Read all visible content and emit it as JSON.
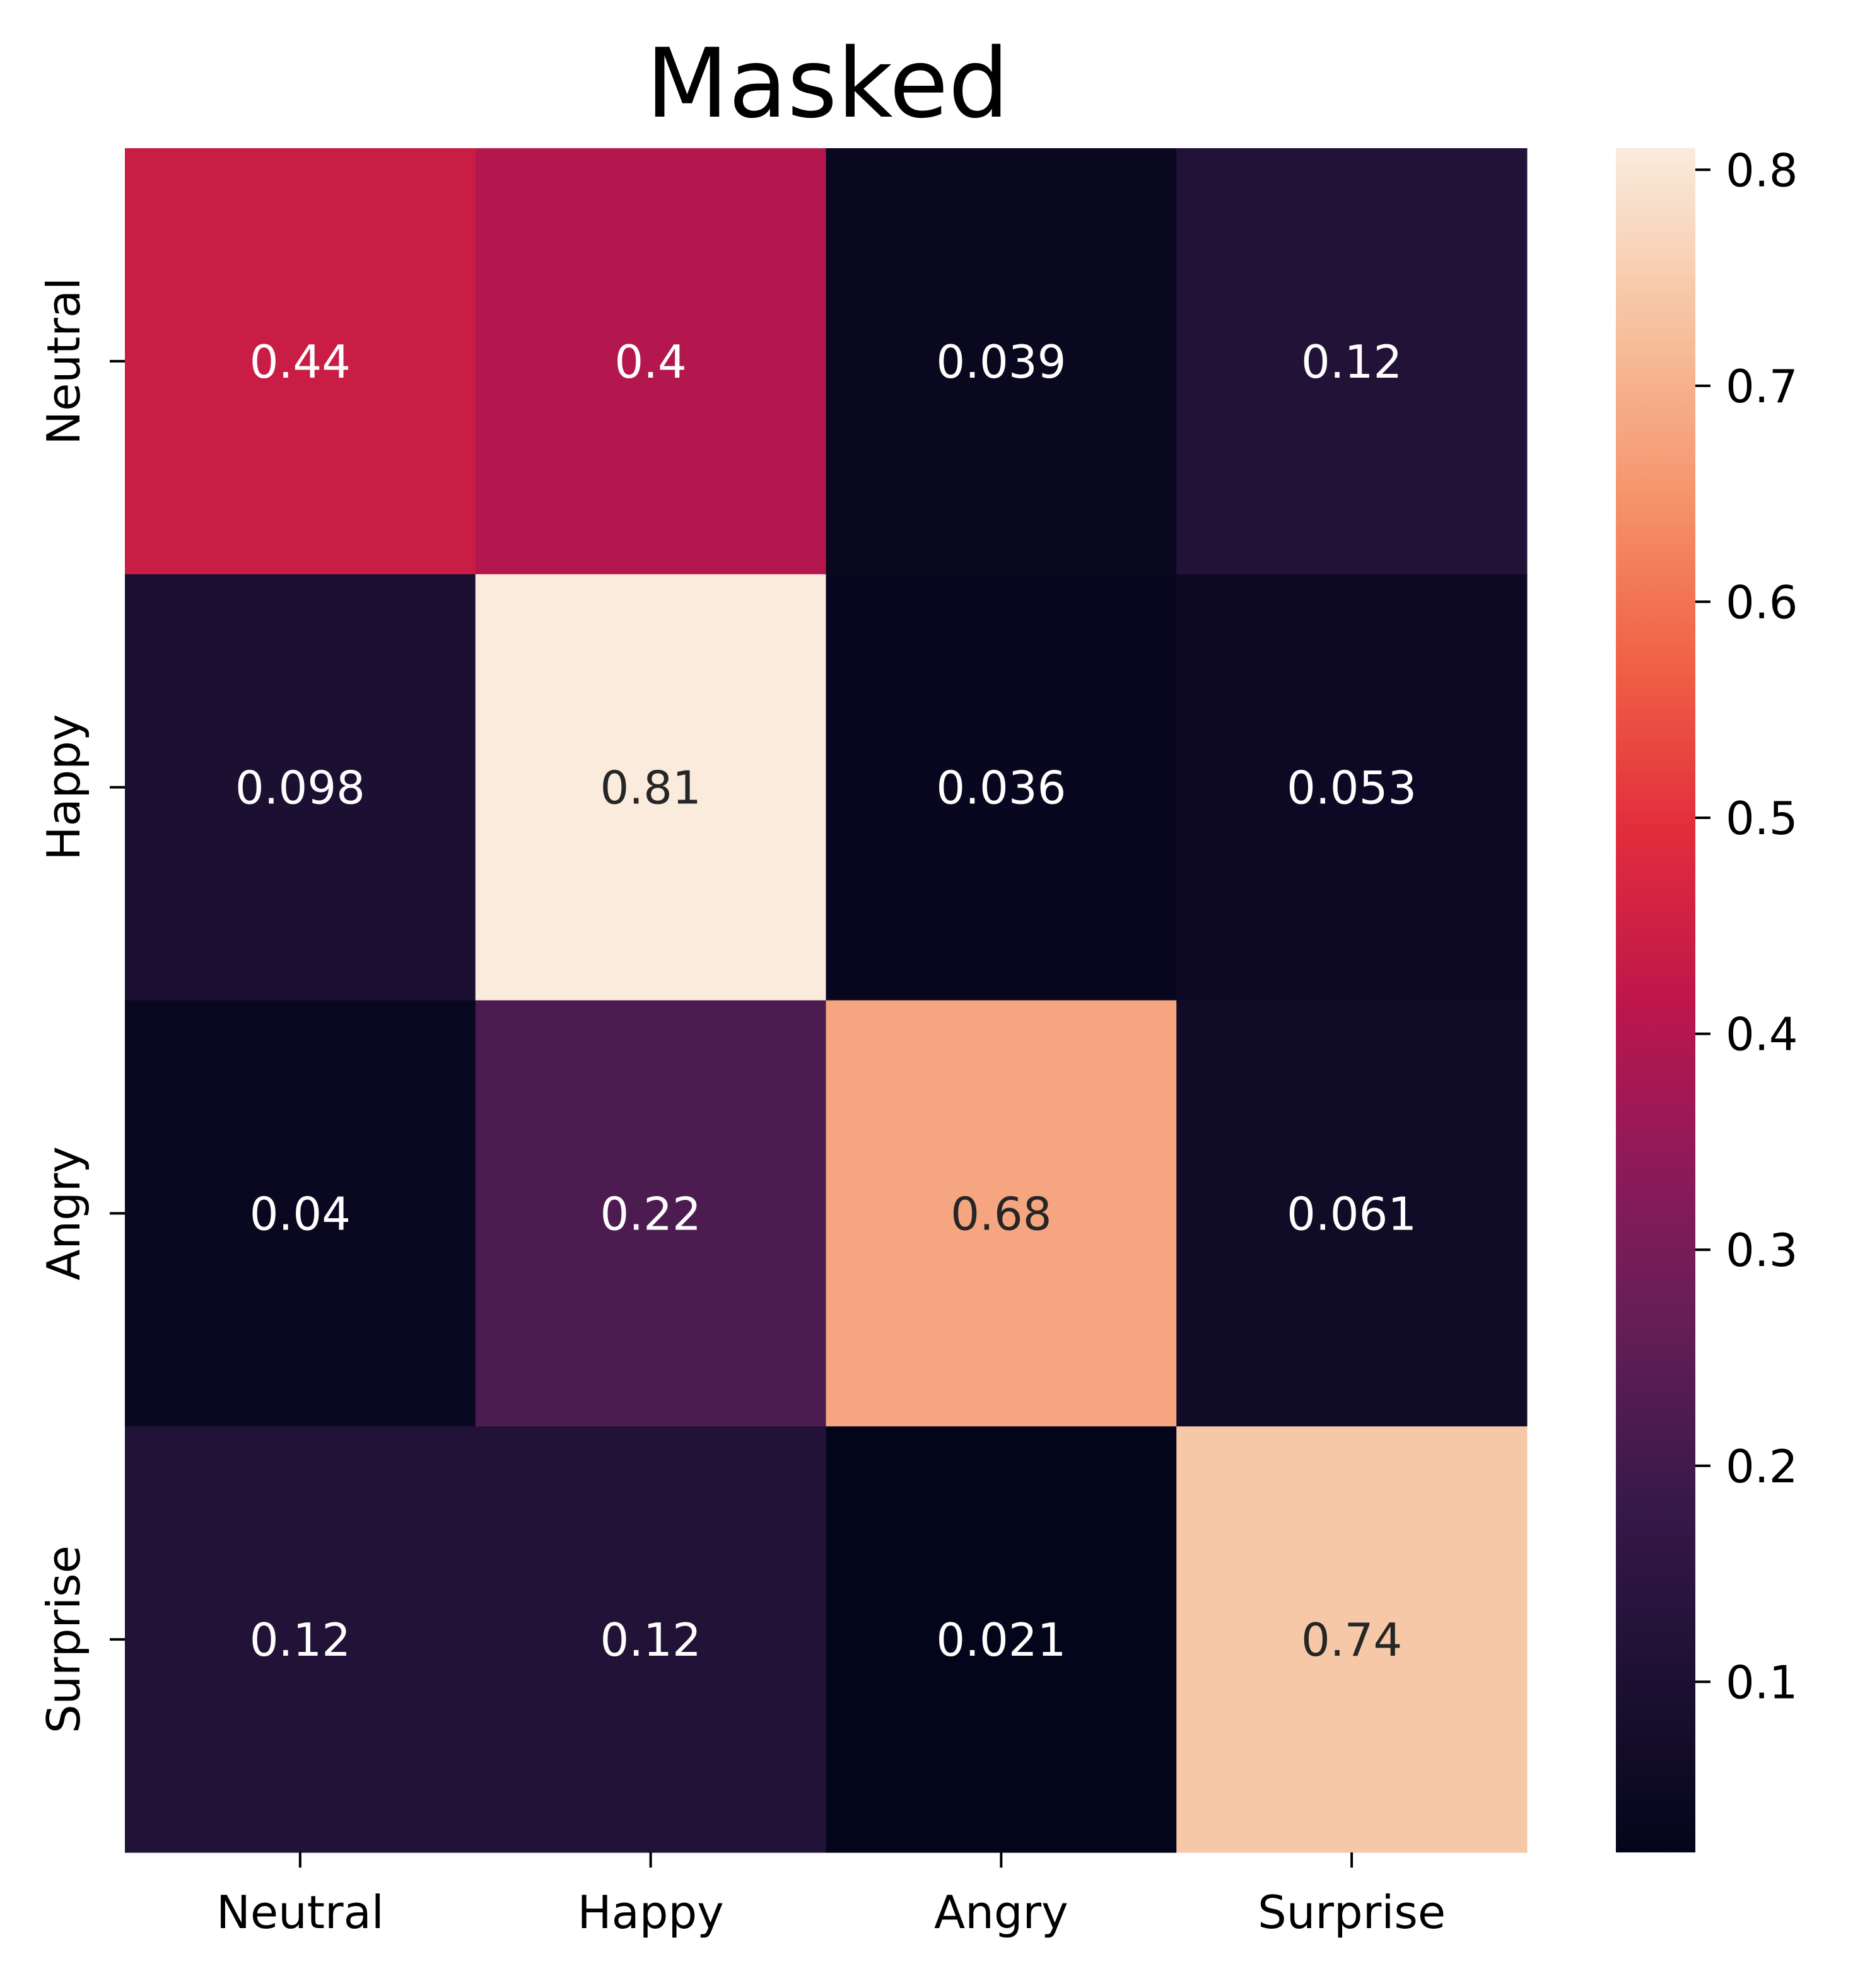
{
  "chart_data": {
    "type": "heatmap",
    "title": "Masked",
    "xlabel": "",
    "ylabel": "",
    "x_categories": [
      "Neutral",
      "Happy",
      "Angry",
      "Surprise"
    ],
    "y_categories": [
      "Neutral",
      "Happy",
      "Angry",
      "Surprise"
    ],
    "values": [
      [
        0.44,
        0.4,
        0.039,
        0.12
      ],
      [
        0.098,
        0.81,
        0.036,
        0.053
      ],
      [
        0.04,
        0.22,
        0.68,
        0.061
      ],
      [
        0.12,
        0.12,
        0.021,
        0.74
      ]
    ],
    "annotations": [
      [
        "0.44",
        "0.4",
        "0.039",
        "0.12"
      ],
      [
        "0.098",
        "0.81",
        "0.036",
        "0.053"
      ],
      [
        "0.04",
        "0.22",
        "0.68",
        "0.061"
      ],
      [
        "0.12",
        "0.12",
        "0.021",
        "0.74"
      ]
    ],
    "colormap": "rocket",
    "vmin": 0.021,
    "vmax": 0.81,
    "colorbar": {
      "ticks": [
        0.1,
        0.2,
        0.3,
        0.4,
        0.5,
        0.6,
        0.7,
        0.8
      ],
      "tick_labels": [
        "0.1",
        "0.2",
        "0.3",
        "0.4",
        "0.5",
        "0.6",
        "0.7",
        "0.8"
      ],
      "placement": "right"
    },
    "grid": false
  }
}
